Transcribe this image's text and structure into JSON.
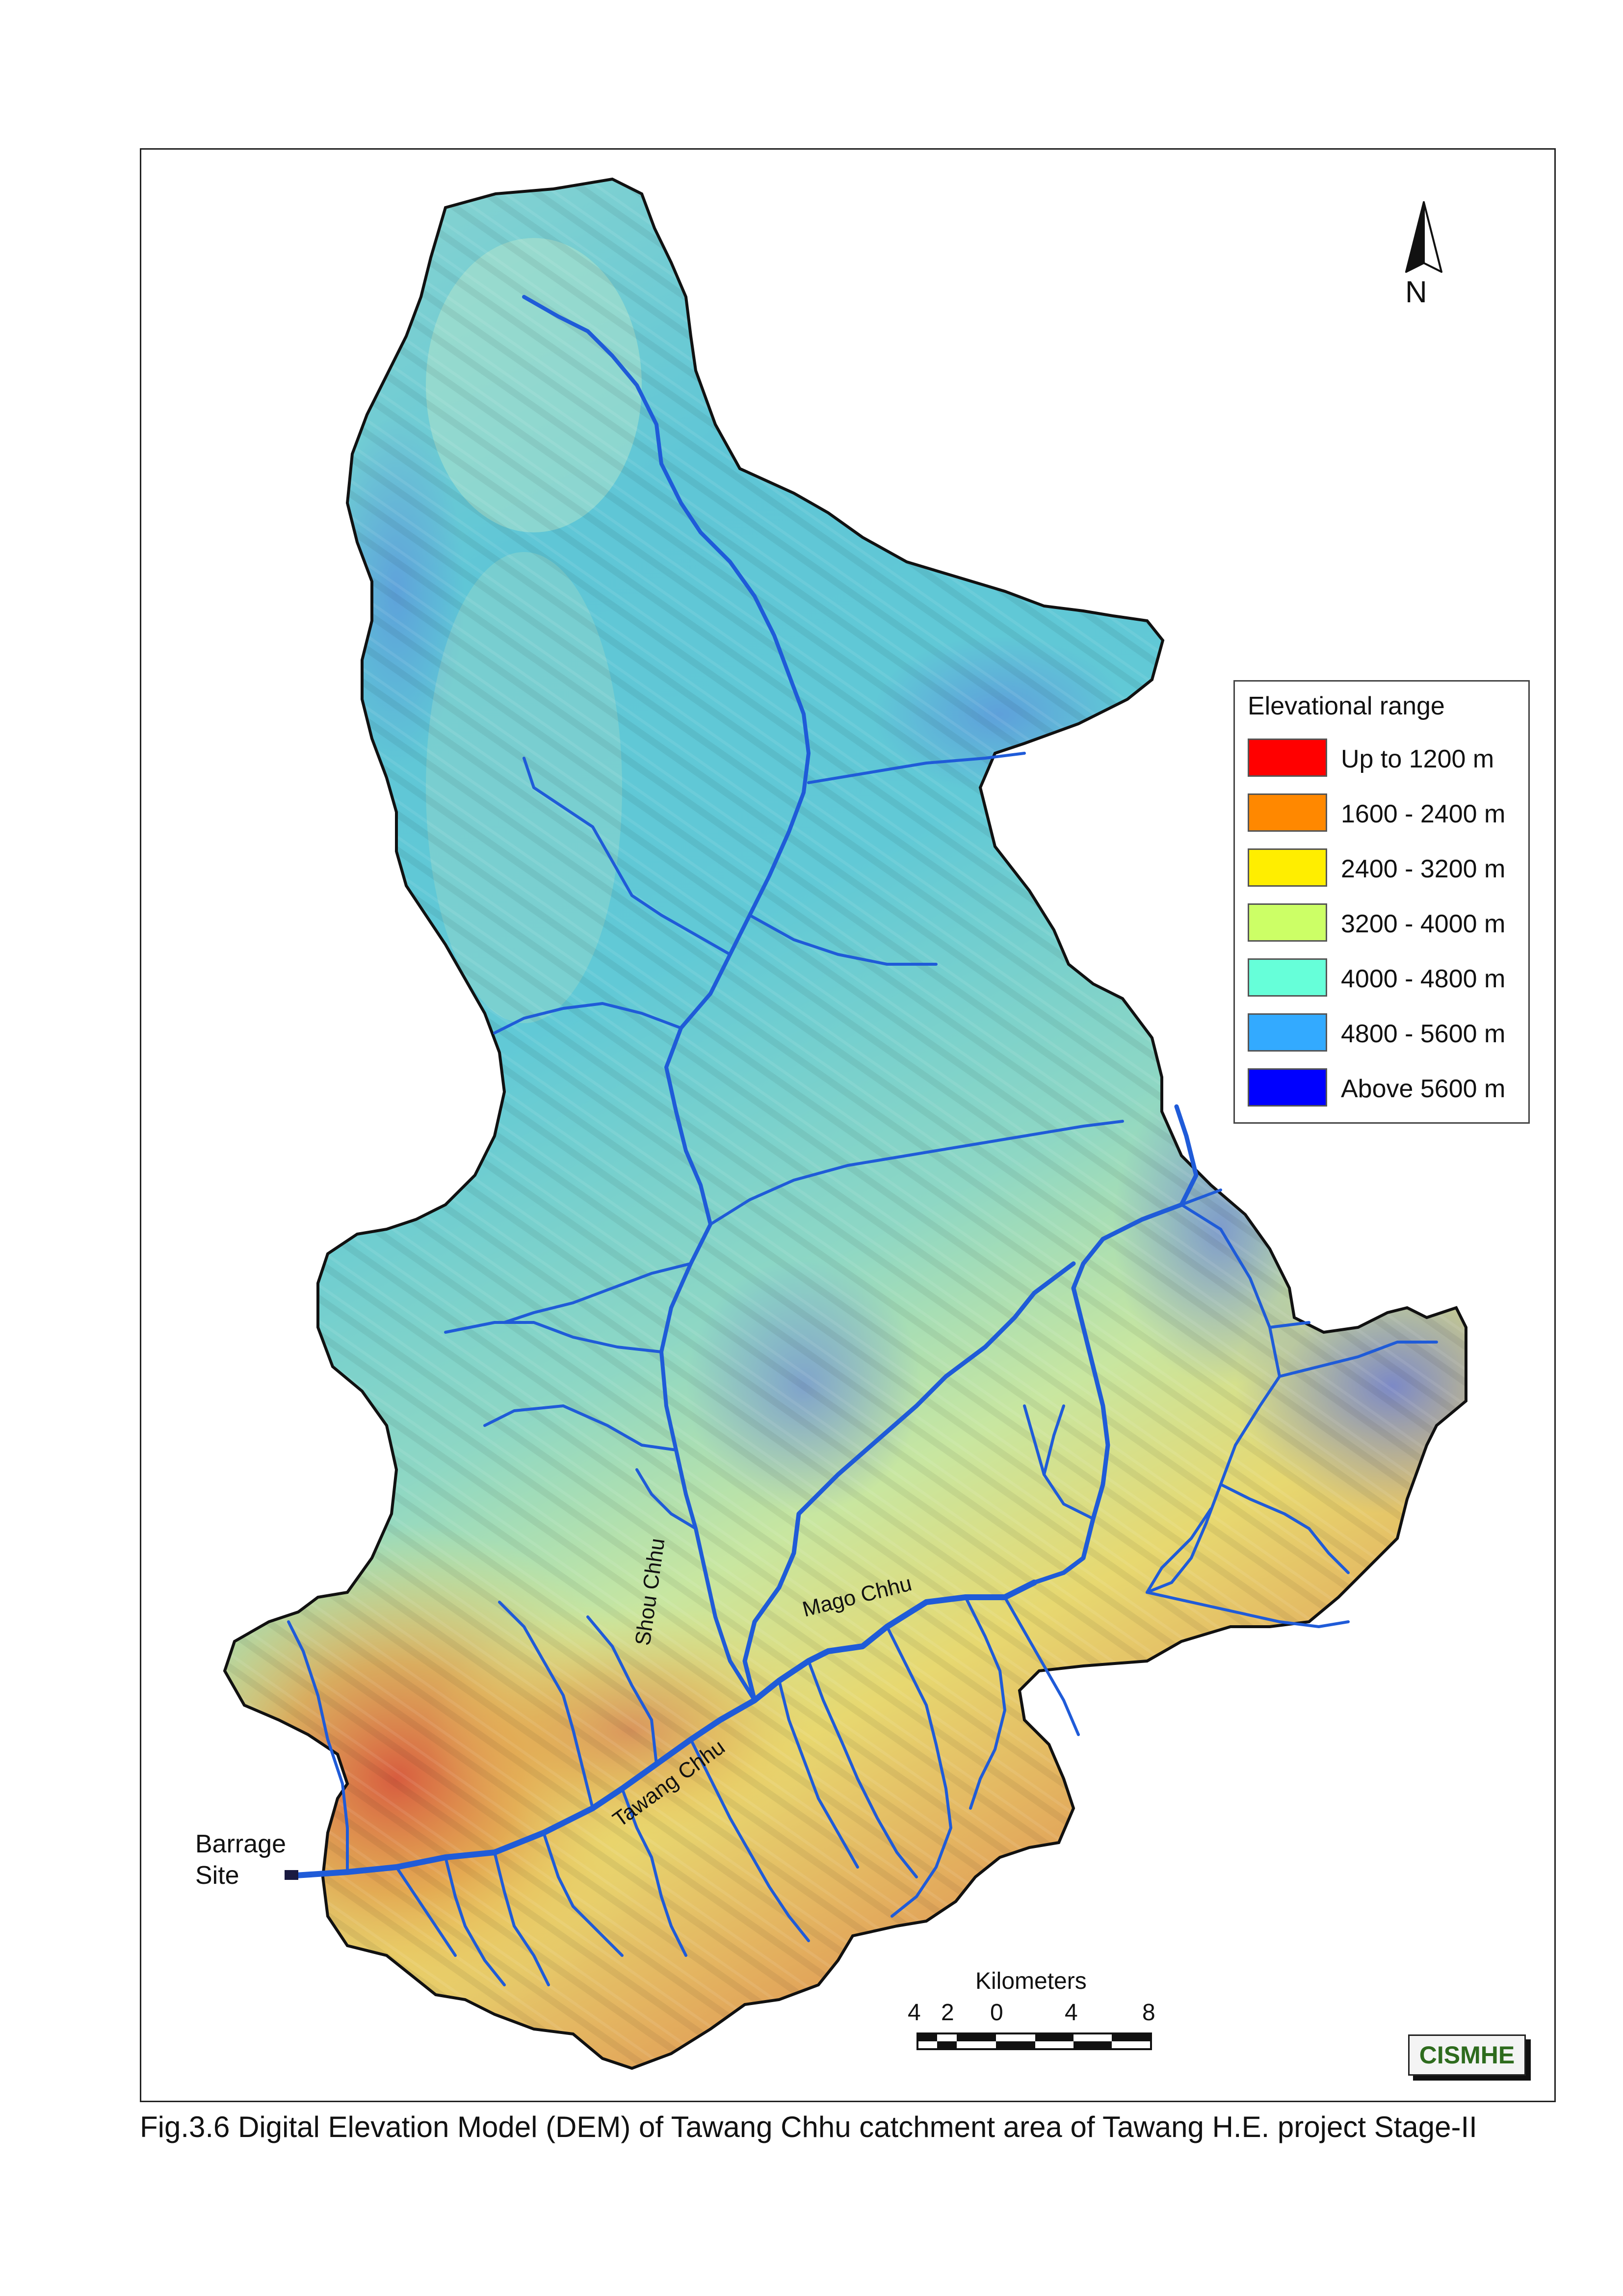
{
  "caption": "Fig.3.6 Digital Elevation Model (DEM) of Tawang Chhu catchment area of Tawang H.E. project Stage-II",
  "map": {
    "north_label": "N",
    "labels": {
      "barrage_site": "Barrage Site",
      "shou_chhu": "Shou Chhu",
      "mago_chhu": "Mago Chhu",
      "tawang_chhu": "Tawang Chhu"
    },
    "colors": {
      "river": "#1f5bd8",
      "outline": "#111111"
    }
  },
  "legend": {
    "title": "Elevational range",
    "items": [
      {
        "label": "Up to 1200 m",
        "color": "#ff0000"
      },
      {
        "label": "1600 - 2400 m",
        "color": "#ff8800"
      },
      {
        "label": "2400 - 3200 m",
        "color": "#ffee00"
      },
      {
        "label": "3200 - 4000 m",
        "color": "#ccff66"
      },
      {
        "label": "4000 - 4800 m",
        "color": "#66ffd9"
      },
      {
        "label": "4800 - 5600 m",
        "color": "#33aaff"
      },
      {
        "label": "Above 5600 m",
        "color": "#0000ff"
      }
    ]
  },
  "scale_bar": {
    "title": "Kilometers",
    "ticks": [
      "4",
      "2",
      "0",
      "4",
      "8"
    ]
  },
  "logo": {
    "text": "CISMHE"
  }
}
